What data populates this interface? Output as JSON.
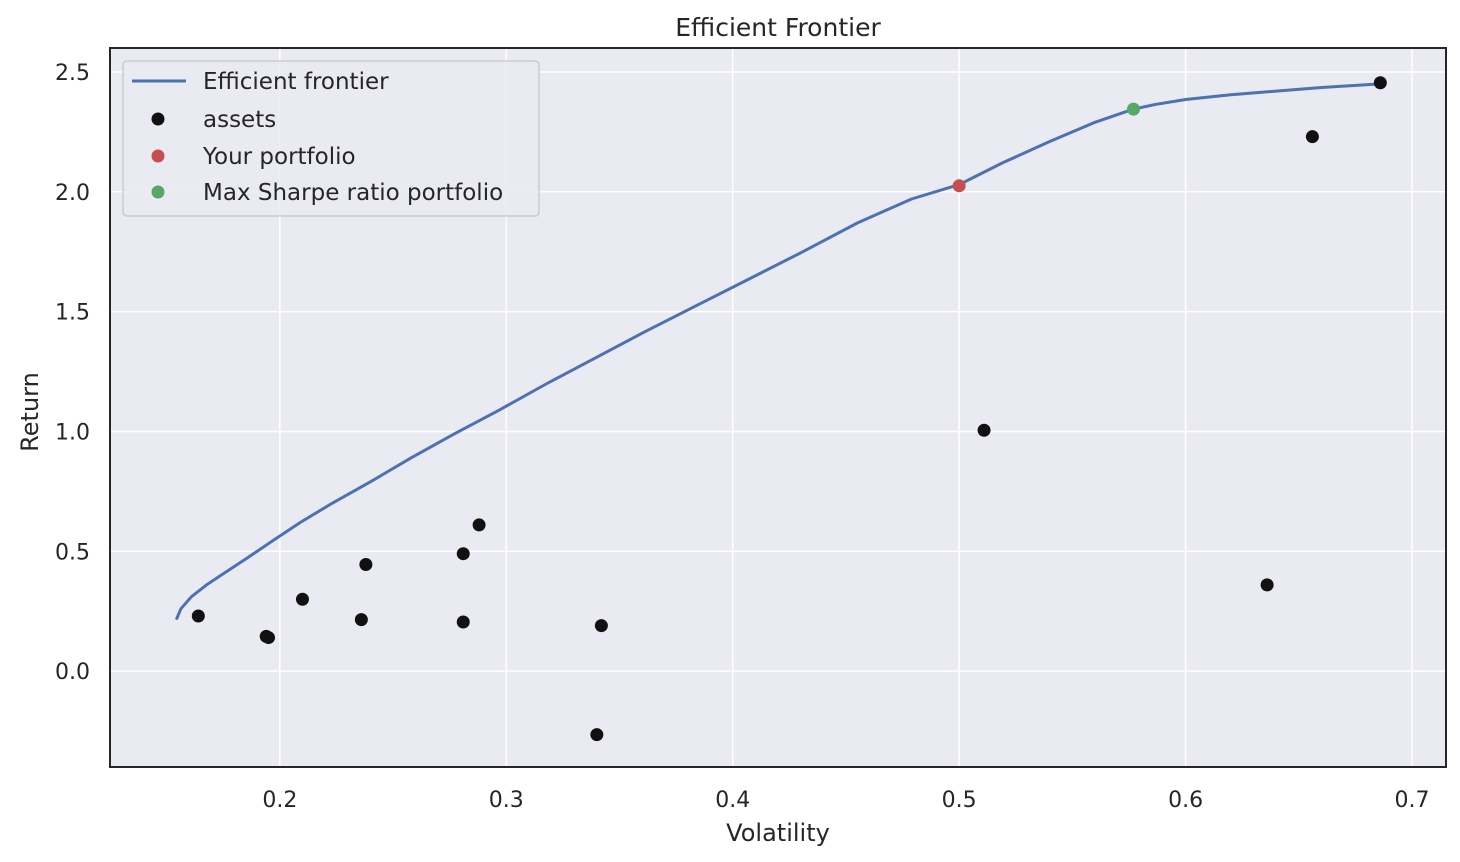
{
  "chart_data": {
    "type": "scatter",
    "title": "Efficient Frontier",
    "xlabel": "Volatility",
    "ylabel": "Return",
    "xlim": [
      0.125,
      0.715
    ],
    "ylim": [
      -0.4,
      2.6
    ],
    "xticks": [
      0.2,
      0.3,
      0.4,
      0.5,
      0.6,
      0.7
    ],
    "xtick_labels": [
      "0.2",
      "0.3",
      "0.4",
      "0.5",
      "0.6",
      "0.7"
    ],
    "yticks": [
      0.0,
      0.5,
      1.0,
      1.5,
      2.0,
      2.5
    ],
    "ytick_labels": [
      "0.0",
      "0.5",
      "1.0",
      "1.5",
      "2.0",
      "2.5"
    ],
    "grid": true,
    "legend_position": "top-left",
    "colors": {
      "background": "#EAEAF2",
      "frontier": "#4C72B0",
      "assets": "#111111",
      "your_portfolio": "#C44E52",
      "max_sharpe": "#55A868",
      "grid": "#FFFFFF",
      "frame": "#262626"
    },
    "series": [
      {
        "name": "Efficient frontier",
        "kind": "line",
        "x": [
          0.1545,
          0.1563,
          0.1609,
          0.1676,
          0.1756,
          0.1853,
          0.1962,
          0.209,
          0.223,
          0.24,
          0.258,
          0.277,
          0.297,
          0.318,
          0.34,
          0.362,
          0.385,
          0.408,
          0.431,
          0.455,
          0.479,
          0.5,
          0.519,
          0.54,
          0.56,
          0.577,
          0.587,
          0.6,
          0.62,
          0.64,
          0.66,
          0.686
        ],
        "y": [
          0.22,
          0.26,
          0.31,
          0.36,
          0.41,
          0.47,
          0.54,
          0.62,
          0.7,
          0.79,
          0.89,
          0.99,
          1.09,
          1.2,
          1.31,
          1.42,
          1.53,
          1.64,
          1.75,
          1.87,
          1.97,
          2.03,
          2.12,
          2.21,
          2.29,
          2.345,
          2.365,
          2.385,
          2.405,
          2.42,
          2.435,
          2.45
        ]
      },
      {
        "name": "assets",
        "kind": "points",
        "x": [
          0.164,
          0.194,
          0.195,
          0.21,
          0.236,
          0.238,
          0.281,
          0.281,
          0.288,
          0.34,
          0.342,
          0.511,
          0.636,
          0.656,
          0.686
        ],
        "y": [
          0.23,
          0.145,
          0.14,
          0.3,
          0.215,
          0.445,
          0.205,
          0.49,
          0.61,
          -0.265,
          0.19,
          1.005,
          0.36,
          2.23,
          2.455
        ]
      },
      {
        "name": "Your portfolio",
        "kind": "points",
        "x": [
          0.5
        ],
        "y": [
          2.025
        ]
      },
      {
        "name": "Max Sharpe ratio portfolio",
        "kind": "points",
        "x": [
          0.577
        ],
        "y": [
          2.345
        ]
      }
    ]
  }
}
